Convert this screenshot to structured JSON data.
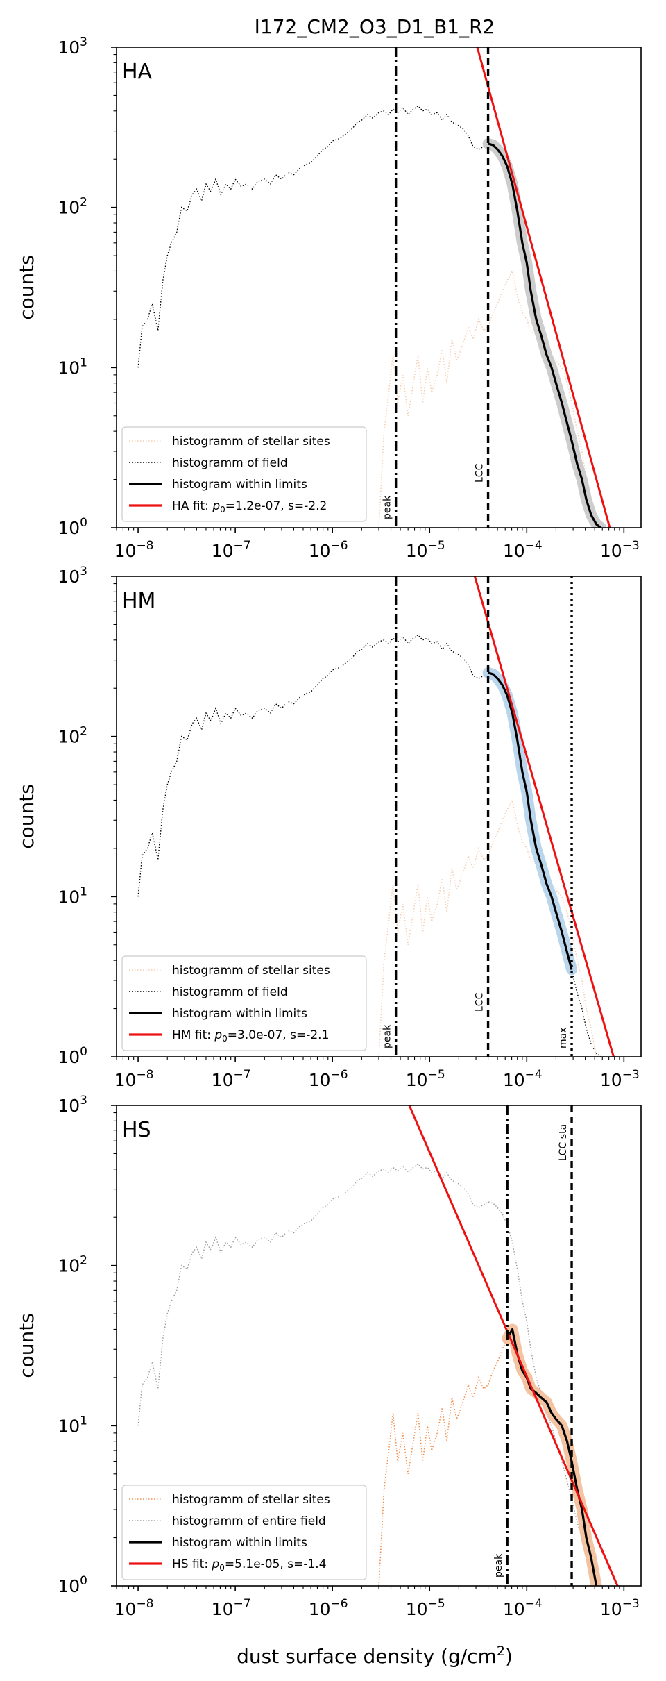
{
  "figure": {
    "title": "I172_CM2_O3_D1_B1_R2",
    "xlabel_main": "dust surface density (g/cm",
    "xlabel_sup": "2",
    "xlabel_tail": ")",
    "ylabel": "counts"
  },
  "colors": {
    "field": "#000000",
    "field_faint": "#9a9a9a",
    "stellar_faint": "#f5cfb4",
    "stellar_strong": "#ef8f4e",
    "fit": "#ee1111",
    "highlight_HA": "#c8c8c8",
    "highlight_HM": "#b3d1ea",
    "highlight_HS": "#f3bd97"
  },
  "chart_data": [
    {
      "type": "line",
      "panel": "HA",
      "title": "I172_CM2_O3_D1_B1_R2",
      "xscale": "log",
      "yscale": "log",
      "xlim": [
        6e-09,
        0.0015
      ],
      "ylim": [
        1,
        1000
      ],
      "x_ticks": [
        "10",
        "10",
        "10",
        "10",
        "10",
        "10"
      ],
      "x_tick_exps": [
        "−8",
        "−7",
        "−6",
        "−5",
        "−4",
        "−3"
      ],
      "y_ticks": [
        "10",
        "10",
        "10",
        "10"
      ],
      "y_tick_exps": [
        "0",
        "1",
        "2",
        "3"
      ],
      "ylabel": "counts",
      "legend": {
        "position": "lower-left",
        "entries": [
          {
            "label": "histogramm of stellar sites",
            "style": "dotted",
            "color": "stellar_faint"
          },
          {
            "label": "histogramm of field",
            "style": "dotted",
            "color": "field"
          },
          {
            "label": "histogram within limits",
            "style": "solid",
            "color": "field"
          },
          {
            "label": "HA fit: ",
            "label_math": "p",
            "label_sub": "0",
            "label_rest": "=1.2e-07, s=-2.2",
            "style": "solid",
            "color": "fit"
          }
        ]
      },
      "vlines": [
        {
          "x": 4.5e-06,
          "style": "dashdot",
          "label": "peak"
        },
        {
          "x": 4e-05,
          "style": "dashed",
          "label": "LCC"
        }
      ],
      "fit": {
        "p0": 1.2e-07,
        "s": -2.2
      },
      "limits": [
        4e-05,
        0.0006
      ],
      "stellar_style": "faint",
      "field_style": "strong",
      "highlight": "highlight_HA"
    },
    {
      "type": "line",
      "panel": "HM",
      "xscale": "log",
      "yscale": "log",
      "xlim": [
        6e-09,
        0.0015
      ],
      "ylim": [
        1,
        1000
      ],
      "x_ticks": [
        "10",
        "10",
        "10",
        "10",
        "10",
        "10"
      ],
      "x_tick_exps": [
        "−8",
        "−7",
        "−6",
        "−5",
        "−4",
        "−3"
      ],
      "y_ticks": [
        "10",
        "10",
        "10",
        "10"
      ],
      "y_tick_exps": [
        "0",
        "1",
        "2",
        "3"
      ],
      "ylabel": "counts",
      "legend": {
        "position": "lower-left",
        "entries": [
          {
            "label": "histogramm of stellar sites",
            "style": "dotted",
            "color": "stellar_faint"
          },
          {
            "label": "histogramm of field",
            "style": "dotted",
            "color": "field"
          },
          {
            "label": "histogram within limits",
            "style": "solid",
            "color": "field"
          },
          {
            "label": "HM fit: ",
            "label_math": "p",
            "label_sub": "0",
            "label_rest": "=3.0e-07, s=-2.1",
            "style": "solid",
            "color": "fit"
          }
        ]
      },
      "vlines": [
        {
          "x": 4.5e-06,
          "style": "dashdot",
          "label": "peak"
        },
        {
          "x": 4e-05,
          "style": "dashed",
          "label": "LCC"
        },
        {
          "x": 0.00029,
          "style": "dotted",
          "label": "max"
        }
      ],
      "fit": {
        "p0": 3e-07,
        "s": -2.1
      },
      "limits": [
        4e-05,
        0.00029
      ],
      "stellar_style": "faint",
      "field_style": "strong",
      "highlight": "highlight_HM"
    },
    {
      "type": "line",
      "panel": "HS",
      "xscale": "log",
      "yscale": "log",
      "xlim": [
        6e-09,
        0.0015
      ],
      "ylim": [
        1,
        1000
      ],
      "x_ticks": [
        "10",
        "10",
        "10",
        "10",
        "10",
        "10"
      ],
      "x_tick_exps": [
        "−8",
        "−7",
        "−6",
        "−5",
        "−4",
        "−3"
      ],
      "y_ticks": [
        "10",
        "10",
        "10",
        "10"
      ],
      "y_tick_exps": [
        "0",
        "1",
        "2",
        "3"
      ],
      "xlabel": "dust surface density (g/cm2)",
      "ylabel": "counts",
      "legend": {
        "position": "lower-left",
        "entries": [
          {
            "label": "histogramm of stellar sites",
            "style": "dotted",
            "color": "stellar_strong"
          },
          {
            "label": "histogramm of entire field",
            "style": "dotted",
            "color": "field_faint"
          },
          {
            "label": "histogram within limits",
            "style": "solid",
            "color": "field"
          },
          {
            "label": "HS fit: ",
            "label_math": "p",
            "label_sub": "0",
            "label_rest": "=5.1e-05, s=-1.4",
            "style": "solid",
            "color": "fit"
          }
        ]
      },
      "vlines": [
        {
          "x": 6.3e-05,
          "style": "dashdot",
          "label": "peak"
        },
        {
          "x": 0.00029,
          "style": "dashed",
          "label": "LCC sta"
        }
      ],
      "fit": {
        "p0": 5.1e-05,
        "s": -1.4
      },
      "limits": [
        6.3e-05,
        0.0006
      ],
      "stellar_style": "strong",
      "field_style": "faint",
      "highlight": "highlight_HS"
    }
  ],
  "field_histogram": {
    "x": [
      1e-08,
      1.1e-08,
      1.25e-08,
      1.4e-08,
      1.6e-08,
      1.8e-08,
      2e-08,
      2.2e-08,
      2.5e-08,
      2.8e-08,
      3.2e-08,
      3.6e-08,
      4e-08,
      4.5e-08,
      5e-08,
      5.6e-08,
      6.3e-08,
      7.1e-08,
      8e-08,
      9e-08,
      1e-07,
      1.15e-07,
      1.3e-07,
      1.5e-07,
      1.7e-07,
      2e-07,
      2.3e-07,
      2.6e-07,
      3e-07,
      3.5e-07,
      4e-07,
      4.6e-07,
      5.3e-07,
      6e-07,
      7e-07,
      8e-07,
      9e-07,
      1e-06,
      1.2e-06,
      1.4e-06,
      1.6e-06,
      1.8e-06,
      2e-06,
      2.3e-06,
      2.6e-06,
      3e-06,
      3.4e-06,
      3.8e-06,
      4.2e-06,
      4.7e-06,
      5.3e-06,
      6e-06,
      6.8e-06,
      7.6e-06,
      8.5e-06,
      9.5e-06,
      1.05e-05,
      1.2e-05,
      1.35e-05,
      1.5e-05,
      1.7e-05,
      1.9e-05,
      2.2e-05,
      2.5e-05,
      2.8e-05,
      3.2e-05,
      3.6e-05,
      4e-05,
      4.5e-05,
      5e-05,
      5.6e-05,
      6.3e-05,
      7.1e-05,
      8e-05,
      9e-05,
      0.0001,
      0.00011,
      0.000125,
      0.00014,
      0.00016,
      0.00018,
      0.0002,
      0.00023,
      0.00026,
      0.00029,
      0.00033,
      0.00037,
      0.00041,
      0.00046,
      0.00052,
      0.00058
    ],
    "y": [
      10,
      18,
      20,
      25,
      17,
      35,
      50,
      60,
      70,
      100,
      95,
      120,
      130,
      110,
      140,
      125,
      150,
      120,
      140,
      130,
      150,
      135,
      140,
      130,
      145,
      150,
      140,
      160,
      150,
      165,
      160,
      175,
      185,
      190,
      210,
      230,
      240,
      260,
      270,
      290,
      310,
      340,
      350,
      380,
      360,
      390,
      400,
      380,
      410,
      390,
      420,
      380,
      410,
      430,
      400,
      410,
      380,
      390,
      350,
      380,
      340,
      330,
      310,
      280,
      240,
      230,
      240,
      250,
      245,
      230,
      210,
      180,
      140,
      95,
      60,
      45,
      30,
      20,
      16,
      12,
      10,
      8,
      6,
      4.5,
      3.5,
      2.5,
      2.0,
      1.5,
      1.2,
      1.05,
      1.0
    ]
  },
  "stellar_histogram": {
    "x": [
      3e-06,
      3.4e-06,
      3.8e-06,
      4.2e-06,
      4.7e-06,
      5.3e-06,
      6e-06,
      6.8e-06,
      7.6e-06,
      8.5e-06,
      9.5e-06,
      1.05e-05,
      1.2e-05,
      1.35e-05,
      1.5e-05,
      1.7e-05,
      1.9e-05,
      2.2e-05,
      2.5e-05,
      2.8e-05,
      3.2e-05,
      3.6e-05,
      4e-05,
      4.5e-05,
      5e-05,
      5.6e-05,
      6.3e-05,
      7.1e-05,
      8e-05,
      9e-05,
      0.0001,
      0.00011,
      0.000125,
      0.00014,
      0.00016,
      0.00018,
      0.0002,
      0.00023,
      0.00026,
      0.00029,
      0.00033,
      0.00037,
      0.00041,
      0.00046,
      0.00052
    ],
    "y": [
      1.0,
      4,
      7,
      12,
      6,
      9,
      5,
      8,
      12,
      6,
      10,
      7,
      9,
      13,
      8,
      15,
      11,
      14,
      18,
      15,
      20,
      17,
      18,
      22,
      25,
      30,
      35,
      40,
      28,
      22,
      20,
      17,
      16,
      15,
      14,
      12,
      11,
      10,
      8,
      6,
      4,
      3,
      2,
      1.5,
      1.0
    ]
  }
}
